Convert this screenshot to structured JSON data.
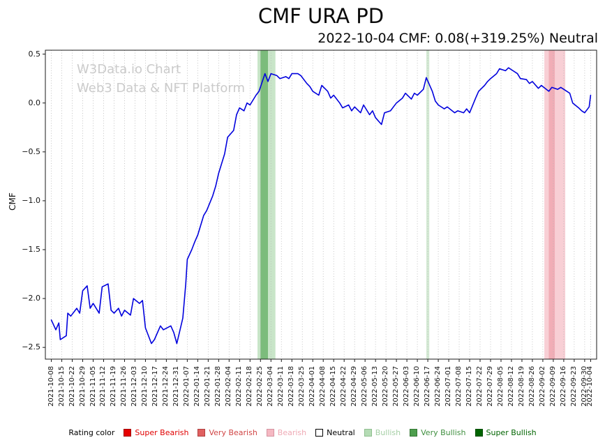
{
  "title": "CMF URA PD",
  "subtitle": "2022-10-04 CMF: 0.08(+319.25%) Neutral",
  "ylabel": "CMF",
  "watermark": {
    "line1": "W3Data.io Chart",
    "line2": "Web3 Data & NFT Platform"
  },
  "legend": {
    "label": "Rating color",
    "items": [
      {
        "label": "Super Bearish",
        "fill": "#e60000",
        "border": "#a00000",
        "text": "#e00000"
      },
      {
        "label": "Very Bearish",
        "fill": "#e06060",
        "border": "#b04040",
        "text": "#d04545"
      },
      {
        "label": "Bearish",
        "fill": "#f5b8c2",
        "border": "#d593a0",
        "text": "#efaab5"
      },
      {
        "label": "Neutral",
        "fill": "#ffffff",
        "border": "#000000",
        "text": "#000000"
      },
      {
        "label": "Bullish",
        "fill": "#b5dcb5",
        "border": "#8fbf8f",
        "text": "#a5cfa5"
      },
      {
        "label": "Very Bullish",
        "fill": "#4d9e4d",
        "border": "#337733",
        "text": "#3f8f3f"
      },
      {
        "label": "Super Bullish",
        "fill": "#006400",
        "border": "#004d00",
        "text": "#006400"
      }
    ]
  },
  "chart_data": {
    "type": "line",
    "title": "CMF URA PD",
    "xlabel": "",
    "ylabel": "CMF",
    "ylim": [
      -2.62,
      0.54
    ],
    "grid": "vertical-dotted",
    "y_ticks": [
      0.5,
      0.0,
      -0.5,
      -1.0,
      -1.5,
      -2.0,
      -2.5
    ],
    "y_tick_labels": [
      "0.5",
      "0.0",
      "−0.5",
      "−1.0",
      "−1.5",
      "−2.0",
      "−2.5"
    ],
    "x_tick_labels": [
      "2021-10-08",
      "2021-10-15",
      "2021-10-22",
      "2021-10-29",
      "2021-11-05",
      "2021-11-12",
      "2021-11-19",
      "2021-11-26",
      "2021-12-03",
      "2021-12-10",
      "2021-12-17",
      "2021-12-24",
      "2021-12-31",
      "2022-01-07",
      "2022-01-14",
      "2022-01-21",
      "2022-01-28",
      "2022-02-04",
      "2022-02-11",
      "2022-02-18",
      "2022-02-25",
      "2022-03-04",
      "2022-03-11",
      "2022-03-18",
      "2022-03-25",
      "2022-04-01",
      "2022-04-08",
      "2022-04-15",
      "2022-04-22",
      "2022-04-29",
      "2022-05-06",
      "2022-05-13",
      "2022-05-20",
      "2022-05-27",
      "2022-06-03",
      "2022-06-10",
      "2022-06-17",
      "2022-06-24",
      "2022-07-01",
      "2022-07-08",
      "2022-07-15",
      "2022-07-22",
      "2022-07-29",
      "2022-08-05",
      "2022-08-12",
      "2022-08-19",
      "2022-08-26",
      "2022-09-02",
      "2022-09-09",
      "2022-09-16",
      "2022-09-23",
      "2022-09-30",
      "2022-10-04"
    ],
    "bands": [
      {
        "start": "2022-02-23",
        "end": "2022-03-07",
        "color": "#b5dcb5",
        "opacity": 0.75,
        "rating": "Bullish"
      },
      {
        "start": "2022-02-25",
        "end": "2022-03-02",
        "color": "#6fb56f",
        "opacity": 0.85,
        "rating": "Very Bullish"
      },
      {
        "start": "2022-06-16",
        "end": "2022-06-18",
        "color": "#cfe8cf",
        "opacity": 0.9,
        "rating": "Bullish"
      },
      {
        "start": "2022-09-03",
        "end": "2022-09-17",
        "color": "#f6c3ca",
        "opacity": 0.8,
        "rating": "Bearish"
      },
      {
        "start": "2022-09-06",
        "end": "2022-09-10",
        "color": "#f0a8b2",
        "opacity": 0.9,
        "rating": "Bearish"
      }
    ],
    "series": [
      {
        "name": "CMF",
        "color": "#0000dd",
        "points": [
          [
            "2021-10-08",
            -2.22
          ],
          [
            "2021-10-11",
            -2.32
          ],
          [
            "2021-10-13",
            -2.25
          ],
          [
            "2021-10-14",
            -2.42
          ],
          [
            "2021-10-18",
            -2.38
          ],
          [
            "2021-10-19",
            -2.15
          ],
          [
            "2021-10-21",
            -2.18
          ],
          [
            "2021-10-25",
            -2.1
          ],
          [
            "2021-10-27",
            -2.15
          ],
          [
            "2021-10-29",
            -1.92
          ],
          [
            "2021-11-01",
            -1.87
          ],
          [
            "2021-11-03",
            -2.1
          ],
          [
            "2021-11-05",
            -2.05
          ],
          [
            "2021-11-09",
            -2.15
          ],
          [
            "2021-11-11",
            -1.88
          ],
          [
            "2021-11-15",
            -1.85
          ],
          [
            "2021-11-17",
            -2.12
          ],
          [
            "2021-11-19",
            -2.15
          ],
          [
            "2021-11-22",
            -2.1
          ],
          [
            "2021-11-24",
            -2.18
          ],
          [
            "2021-11-26",
            -2.12
          ],
          [
            "2021-11-30",
            -2.17
          ],
          [
            "2021-12-02",
            -2.0
          ],
          [
            "2021-12-06",
            -2.05
          ],
          [
            "2021-12-08",
            -2.02
          ],
          [
            "2021-12-10",
            -2.3
          ],
          [
            "2021-12-14",
            -2.46
          ],
          [
            "2021-12-16",
            -2.42
          ],
          [
            "2021-12-20",
            -2.28
          ],
          [
            "2021-12-22",
            -2.32
          ],
          [
            "2021-12-27",
            -2.28
          ],
          [
            "2021-12-29",
            -2.35
          ],
          [
            "2021-12-31",
            -2.46
          ],
          [
            "2022-01-04",
            -2.2
          ],
          [
            "2022-01-06",
            -1.85
          ],
          [
            "2022-01-07",
            -1.6
          ],
          [
            "2022-01-10",
            -1.5
          ],
          [
            "2022-01-12",
            -1.42
          ],
          [
            "2022-01-14",
            -1.35
          ],
          [
            "2022-01-18",
            -1.15
          ],
          [
            "2022-01-20",
            -1.1
          ],
          [
            "2022-01-24",
            -0.95
          ],
          [
            "2022-01-26",
            -0.85
          ],
          [
            "2022-01-28",
            -0.72
          ],
          [
            "2022-02-01",
            -0.52
          ],
          [
            "2022-02-03",
            -0.35
          ],
          [
            "2022-02-07",
            -0.28
          ],
          [
            "2022-02-09",
            -0.12
          ],
          [
            "2022-02-11",
            -0.05
          ],
          [
            "2022-02-14",
            -0.08
          ],
          [
            "2022-02-16",
            0.0
          ],
          [
            "2022-02-18",
            -0.02
          ],
          [
            "2022-02-22",
            0.08
          ],
          [
            "2022-02-24",
            0.12
          ],
          [
            "2022-02-28",
            0.3
          ],
          [
            "2022-03-02",
            0.22
          ],
          [
            "2022-03-04",
            0.3
          ],
          [
            "2022-03-08",
            0.28
          ],
          [
            "2022-03-10",
            0.25
          ],
          [
            "2022-03-14",
            0.27
          ],
          [
            "2022-03-16",
            0.25
          ],
          [
            "2022-03-18",
            0.3
          ],
          [
            "2022-03-22",
            0.3
          ],
          [
            "2022-03-24",
            0.28
          ],
          [
            "2022-03-28",
            0.2
          ],
          [
            "2022-03-30",
            0.17
          ],
          [
            "2022-04-01",
            0.12
          ],
          [
            "2022-04-05",
            0.08
          ],
          [
            "2022-04-07",
            0.18
          ],
          [
            "2022-04-11",
            0.12
          ],
          [
            "2022-04-13",
            0.05
          ],
          [
            "2022-04-15",
            0.08
          ],
          [
            "2022-04-19",
            0.0
          ],
          [
            "2022-04-21",
            -0.05
          ],
          [
            "2022-04-25",
            -0.02
          ],
          [
            "2022-04-27",
            -0.08
          ],
          [
            "2022-04-29",
            -0.04
          ],
          [
            "2022-05-03",
            -0.1
          ],
          [
            "2022-05-05",
            -0.02
          ],
          [
            "2022-05-09",
            -0.12
          ],
          [
            "2022-05-11",
            -0.08
          ],
          [
            "2022-05-13",
            -0.15
          ],
          [
            "2022-05-17",
            -0.22
          ],
          [
            "2022-05-19",
            -0.1
          ],
          [
            "2022-05-23",
            -0.08
          ],
          [
            "2022-05-25",
            -0.04
          ],
          [
            "2022-05-27",
            0.0
          ],
          [
            "2022-05-31",
            0.05
          ],
          [
            "2022-06-02",
            0.1
          ],
          [
            "2022-06-06",
            0.04
          ],
          [
            "2022-06-08",
            0.1
          ],
          [
            "2022-06-10",
            0.08
          ],
          [
            "2022-06-14",
            0.14
          ],
          [
            "2022-06-16",
            0.26
          ],
          [
            "2022-06-20",
            0.12
          ],
          [
            "2022-06-22",
            0.02
          ],
          [
            "2022-06-24",
            -0.02
          ],
          [
            "2022-06-28",
            -0.06
          ],
          [
            "2022-06-30",
            -0.04
          ],
          [
            "2022-07-05",
            -0.1
          ],
          [
            "2022-07-07",
            -0.08
          ],
          [
            "2022-07-11",
            -0.1
          ],
          [
            "2022-07-13",
            -0.06
          ],
          [
            "2022-07-15",
            -0.1
          ],
          [
            "2022-07-19",
            0.05
          ],
          [
            "2022-07-21",
            0.12
          ],
          [
            "2022-07-25",
            0.18
          ],
          [
            "2022-07-27",
            0.22
          ],
          [
            "2022-07-29",
            0.25
          ],
          [
            "2022-08-02",
            0.3
          ],
          [
            "2022-08-04",
            0.35
          ],
          [
            "2022-08-08",
            0.33
          ],
          [
            "2022-08-10",
            0.36
          ],
          [
            "2022-08-12",
            0.34
          ],
          [
            "2022-08-16",
            0.3
          ],
          [
            "2022-08-18",
            0.25
          ],
          [
            "2022-08-22",
            0.24
          ],
          [
            "2022-08-24",
            0.2
          ],
          [
            "2022-08-26",
            0.22
          ],
          [
            "2022-08-30",
            0.15
          ],
          [
            "2022-09-01",
            0.18
          ],
          [
            "2022-09-06",
            0.12
          ],
          [
            "2022-09-08",
            0.16
          ],
          [
            "2022-09-12",
            0.14
          ],
          [
            "2022-09-14",
            0.16
          ],
          [
            "2022-09-16",
            0.14
          ],
          [
            "2022-09-20",
            0.1
          ],
          [
            "2022-09-22",
            0.0
          ],
          [
            "2022-09-26",
            -0.05
          ],
          [
            "2022-09-28",
            -0.08
          ],
          [
            "2022-09-30",
            -0.1
          ],
          [
            "2022-10-03",
            -0.04
          ],
          [
            "2022-10-04",
            0.08
          ]
        ]
      }
    ]
  }
}
